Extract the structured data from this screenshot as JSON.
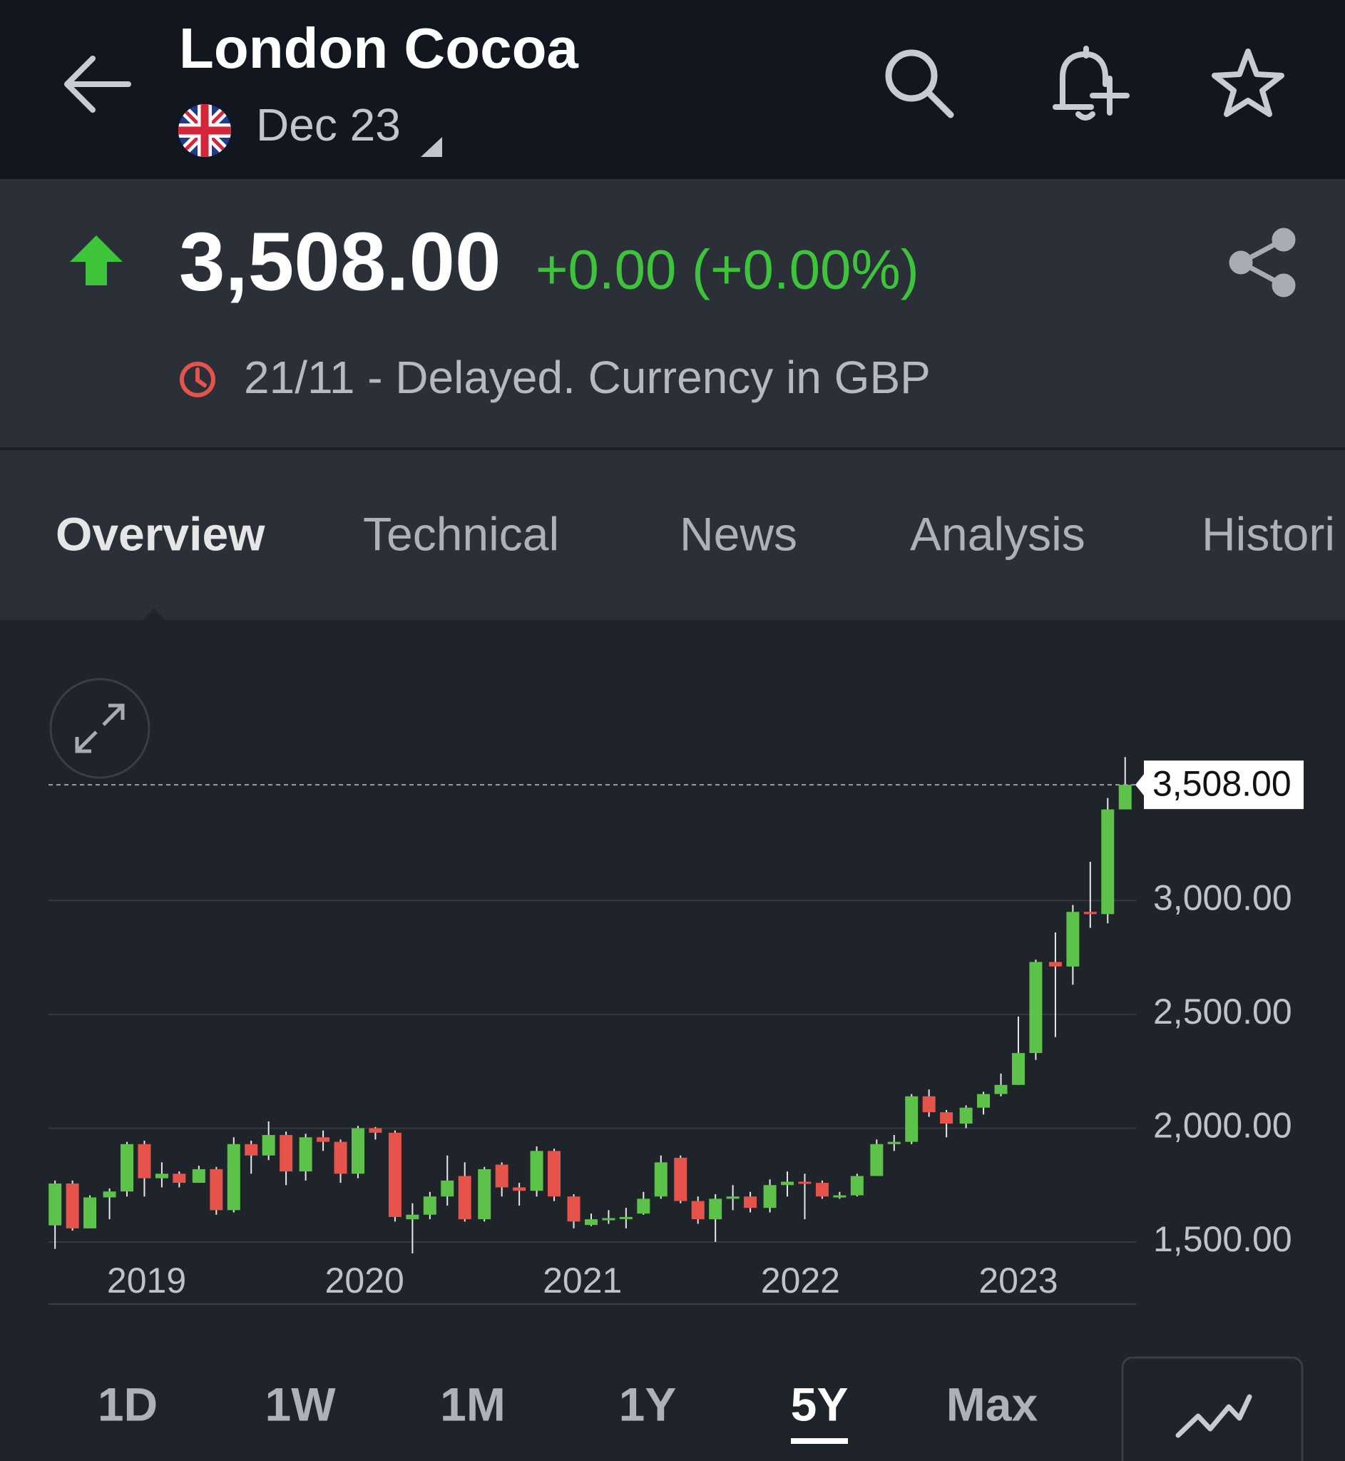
{
  "header": {
    "title": "London Cocoa",
    "contract": "Dec 23"
  },
  "quote": {
    "price": "3,508.00",
    "change": "+0.00 (+0.00%)",
    "status": "21/11 - Delayed. Currency in GBP"
  },
  "tabs": [
    "Overview",
    "Technical",
    "News",
    "Analysis",
    "Histori"
  ],
  "periods": [
    "1D",
    "1W",
    "1M",
    "1Y",
    "5Y",
    "Max"
  ],
  "selected_period": "5Y",
  "chart_data": {
    "type": "candlestick",
    "up_color": "#5cc24a",
    "down_color": "#e5534b",
    "x": [
      2018.58,
      2018.66,
      2018.74,
      2018.83,
      2018.91,
      2018.99,
      2019.07,
      2019.15,
      2019.24,
      2019.32,
      2019.4,
      2019.48,
      2019.56,
      2019.64,
      2019.73,
      2019.81,
      2019.89,
      2019.97,
      2020.05,
      2020.14,
      2020.22,
      2020.3,
      2020.38,
      2020.46,
      2020.55,
      2020.63,
      2020.71,
      2020.79,
      2020.87,
      2020.96,
      2021.04,
      2021.12,
      2021.2,
      2021.28,
      2021.36,
      2021.45,
      2021.53,
      2021.61,
      2021.69,
      2021.77,
      2021.86,
      2021.94,
      2022.02,
      2022.1,
      2022.18,
      2022.26,
      2022.35,
      2022.43,
      2022.51,
      2022.59,
      2022.67,
      2022.76,
      2022.84,
      2022.92,
      2023.0,
      2023.08,
      2023.17,
      2023.25,
      2023.33,
      2023.41,
      2023.49
    ],
    "open": [
      1573,
      1757,
      1560,
      1696,
      1722,
      1930,
      1780,
      1800,
      1760,
      1820,
      1640,
      1930,
      1880,
      1970,
      1810,
      1960,
      1940,
      1800,
      2000,
      1980,
      1600,
      1620,
      1700,
      1790,
      1600,
      1840,
      1740,
      1725,
      1900,
      1700,
      1575,
      1600,
      1605,
      1625,
      1700,
      1870,
      1680,
      1600,
      1690,
      1700,
      1650,
      1750,
      1765,
      1760,
      1700,
      1705,
      1790,
      1930,
      1940,
      2140,
      2070,
      2020,
      2090,
      2150,
      2190,
      2330,
      2730,
      2710,
      2950,
      2940,
      3400
    ],
    "high": [
      1770,
      1770,
      1705,
      1735,
      1940,
      1945,
      1850,
      1810,
      1835,
      1830,
      1960,
      1945,
      2030,
      1985,
      1975,
      1990,
      1950,
      2010,
      2005,
      1990,
      1670,
      1720,
      1880,
      1850,
      1830,
      1850,
      1760,
      1920,
      1910,
      1710,
      1625,
      1640,
      1650,
      1720,
      1880,
      1880,
      1700,
      1710,
      1750,
      1720,
      1775,
      1810,
      1800,
      1770,
      1720,
      1800,
      1950,
      1970,
      2150,
      2170,
      2080,
      2100,
      2160,
      2240,
      2490,
      2740,
      2860,
      2980,
      3170,
      3450,
      3630
    ],
    "low": [
      1470,
      1550,
      1560,
      1600,
      1700,
      1700,
      1740,
      1740,
      1760,
      1620,
      1630,
      1800,
      1860,
      1750,
      1770,
      1900,
      1760,
      1780,
      1950,
      1590,
      1450,
      1600,
      1660,
      1590,
      1590,
      1700,
      1660,
      1700,
      1680,
      1560,
      1570,
      1580,
      1560,
      1620,
      1690,
      1670,
      1580,
      1500,
      1640,
      1630,
      1630,
      1700,
      1600,
      1690,
      1690,
      1700,
      1790,
      1900,
      1930,
      2050,
      1960,
      2000,
      2060,
      2140,
      2190,
      2300,
      2400,
      2630,
      2880,
      2900,
      3420
    ],
    "close": [
      1757,
      1560,
      1696,
      1722,
      1930,
      1780,
      1800,
      1760,
      1820,
      1640,
      1930,
      1880,
      1970,
      1810,
      1960,
      1940,
      1800,
      2000,
      1980,
      1610,
      1620,
      1700,
      1770,
      1600,
      1820,
      1740,
      1725,
      1900,
      1700,
      1590,
      1600,
      1605,
      1610,
      1690,
      1850,
      1680,
      1600,
      1690,
      1700,
      1650,
      1750,
      1765,
      1760,
      1700,
      1705,
      1790,
      1930,
      1940,
      2140,
      2070,
      2020,
      2090,
      2150,
      2190,
      2330,
      2730,
      2710,
      2950,
      2940,
      3400,
      3508
    ],
    "xlim": [
      2018.55,
      2023.54
    ],
    "xticks": [
      2019,
      2020,
      2021,
      2022,
      2023
    ],
    "ylim": [
      1450,
      3640
    ],
    "yticks": [
      {
        "value": 1500,
        "label": "1,500.00"
      },
      {
        "value": 2000,
        "label": "2,000.00"
      },
      {
        "value": 2500,
        "label": "2,500.00"
      },
      {
        "value": 3000,
        "label": "3,000.00"
      }
    ],
    "grid": true,
    "last_price": 3508,
    "last_price_label": "3,508.00"
  }
}
